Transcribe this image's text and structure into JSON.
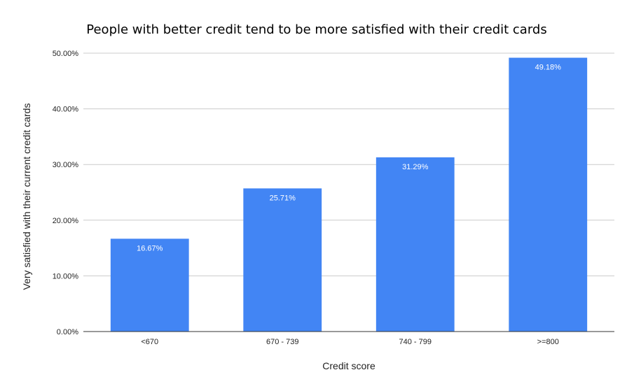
{
  "chart_data": {
    "type": "bar",
    "title": "People with better credit tend to be more satisfied with their credit cards",
    "xlabel": "Credit score",
    "ylabel": "Very satisfied with their current credit cards",
    "categories": [
      "<670",
      "670 - 739",
      "740 - 799",
      ">=800"
    ],
    "values": [
      16.67,
      25.71,
      31.29,
      49.18
    ],
    "value_labels": [
      "16.67%",
      "25.71%",
      "31.29%",
      "49.18%"
    ],
    "ylim": [
      0,
      50
    ],
    "yticks": [
      0,
      10,
      20,
      30,
      40,
      50
    ],
    "ytick_labels": [
      "0.00%",
      "10.00%",
      "20.00%",
      "30.00%",
      "40.00%",
      "50.00%"
    ],
    "grid": true,
    "legend": "none",
    "bar_color": "#4285f4"
  }
}
